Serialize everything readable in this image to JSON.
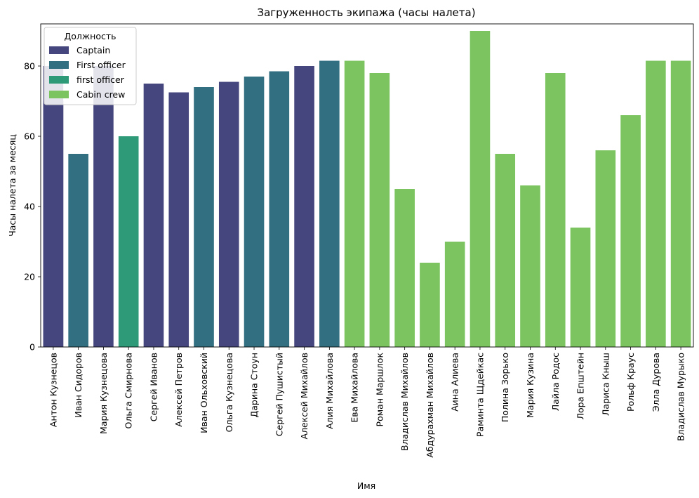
{
  "chart_data": {
    "type": "bar",
    "title": "Загруженность экипажа (часы налета)",
    "xlabel": "Имя",
    "ylabel": "Часы налета за месяц",
    "ylim": [
      0,
      92
    ],
    "yticks": [
      0,
      20,
      40,
      60,
      80
    ],
    "grid": false,
    "legend": {
      "title": "Должность",
      "placement": "top-left",
      "entries": [
        {
          "name": "Captain",
          "color": "#46467e"
        },
        {
          "name": "First officer",
          "color": "#326f80"
        },
        {
          "name": "first officer",
          "color": "#2e9a78"
        },
        {
          "name": "Cabin crew",
          "color": "#7bc45f"
        }
      ]
    },
    "bars": [
      {
        "category": "Антон Кузнецов",
        "value": 70,
        "role": "Captain",
        "overlay": {
          "value": 80,
          "role": "Captain"
        }
      },
      {
        "category": "Иван Сидоров",
        "value": 55,
        "role": "First officer"
      },
      {
        "category": "Мария Кузнецова",
        "value": 80,
        "role": "Captain"
      },
      {
        "category": "Ольга Смирнова",
        "value": 60,
        "role": "first officer"
      },
      {
        "category": "Сергей Иванов",
        "value": 75,
        "role": "Captain"
      },
      {
        "category": "Алексей Петров",
        "value": 72.5,
        "role": "Captain"
      },
      {
        "category": "Иван Ольховский",
        "value": 74,
        "role": "First officer"
      },
      {
        "category": "Ольга Кузнецова",
        "value": 75.5,
        "role": "Captain"
      },
      {
        "category": "Дарина Стоун",
        "value": 77,
        "role": "First officer"
      },
      {
        "category": "Сергей Пушистый",
        "value": 78.5,
        "role": "First officer"
      },
      {
        "category": "Алексей Михайлов",
        "value": 80,
        "role": "Captain"
      },
      {
        "category": "Алия Михайлова",
        "value": 81.5,
        "role": "First officer"
      },
      {
        "category": "Ева Михайлова",
        "value": 81.5,
        "role": "Cabin crew"
      },
      {
        "category": "Роман  Маршлок",
        "value": 78,
        "role": "Cabin crew"
      },
      {
        "category": "Владислав Михайлов",
        "value": 45,
        "role": "Cabin crew"
      },
      {
        "category": "Абдурахман Михайлов",
        "value": 24,
        "role": "Cabin crew"
      },
      {
        "category": "Аина Алиева",
        "value": 30,
        "role": "Cabin crew"
      },
      {
        "category": "Раминта Щдейкас",
        "value": 90,
        "role": "Cabin crew"
      },
      {
        "category": "Полина Зорько",
        "value": 55,
        "role": "Cabin crew"
      },
      {
        "category": "Мария Кузина",
        "value": 46,
        "role": "Cabin crew"
      },
      {
        "category": "Лайла Родос",
        "value": 78,
        "role": "Cabin crew"
      },
      {
        "category": "Лора Епштейн",
        "value": 34,
        "role": "Cabin crew"
      },
      {
        "category": "Лариса Кныш",
        "value": 56,
        "role": "Cabin crew"
      },
      {
        "category": "Рольф Краус",
        "value": 66,
        "role": "Cabin crew"
      },
      {
        "category": "Элла Дурова",
        "value": 81.5,
        "role": "Cabin crew"
      },
      {
        "category": "Владислав Мурыко",
        "value": 81.5,
        "role": "Cabin crew"
      }
    ]
  }
}
